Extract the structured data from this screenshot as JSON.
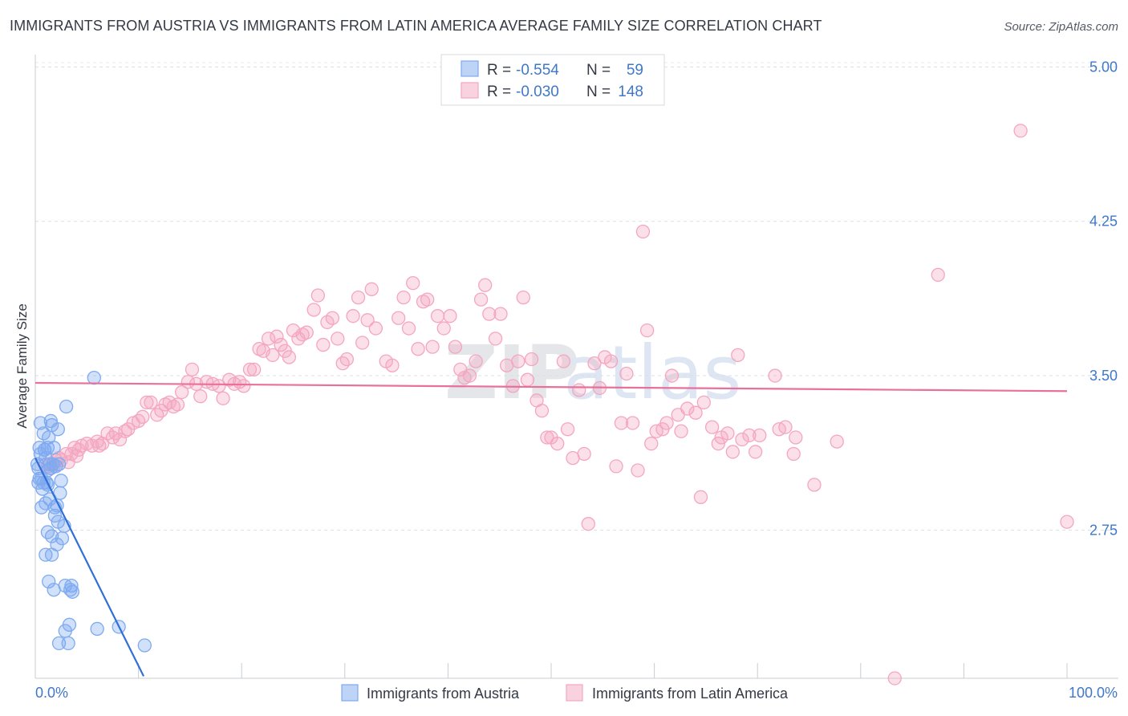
{
  "header": {
    "title": "IMMIGRANTS FROM AUSTRIA VS IMMIGRANTS FROM LATIN AMERICA AVERAGE FAMILY SIZE CORRELATION CHART",
    "source": "Source: ZipAtlas.com"
  },
  "watermark": {
    "part1": "ZIP",
    "part2": "atlas"
  },
  "chart_data": {
    "type": "scatter",
    "title": "IMMIGRANTS FROM AUSTRIA VS IMMIGRANTS FROM LATIN AMERICA AVERAGE FAMILY SIZE CORRELATION CHART",
    "xlabel": "",
    "ylabel": "Average Family Size",
    "xlim": [
      0,
      100
    ],
    "ylim": [
      2.03,
      5.06
    ],
    "y_ticks": [
      2.75,
      3.5,
      4.25,
      5.0
    ],
    "y_tick_labels": [
      "2.75",
      "3.50",
      "4.25",
      "5.00"
    ],
    "x_tick_labels": [
      "0.0%",
      "100.0%"
    ],
    "legend": {
      "placement": "top-center",
      "rows": [
        {
          "r_label": "R =",
          "r_value": "-0.554",
          "n_label": "N =",
          "n_value": "59"
        },
        {
          "r_label": "R =",
          "r_value": "-0.030",
          "n_label": "N =",
          "n_value": "148"
        }
      ]
    },
    "series": [
      {
        "name": "Immigrants from Austria",
        "color": "#7eaaf0",
        "line_color": "#2f6fd6",
        "trend": {
          "x": [
            0,
            10.5
          ],
          "y": [
            3.1,
            2.04
          ]
        },
        "points": [
          [
            0.2,
            3.07
          ],
          [
            0.4,
            3.0
          ],
          [
            0.5,
            3.12
          ],
          [
            0.3,
            3.05
          ],
          [
            0.6,
            3.0
          ],
          [
            0.8,
            2.98
          ],
          [
            0.7,
            2.95
          ],
          [
            1.0,
            3.1
          ],
          [
            0.9,
            3.14
          ],
          [
            1.2,
            3.04
          ],
          [
            1.1,
            2.98
          ],
          [
            1.5,
            3.05
          ],
          [
            1.3,
            3.2
          ],
          [
            1.4,
            2.9
          ],
          [
            1.0,
            2.88
          ],
          [
            0.6,
            2.86
          ],
          [
            1.7,
            3.07
          ],
          [
            2.0,
            3.06
          ],
          [
            1.8,
            3.15
          ],
          [
            2.3,
            3.07
          ],
          [
            2.5,
            2.99
          ],
          [
            2.1,
            2.87
          ],
          [
            2.4,
            2.93
          ],
          [
            1.6,
            3.26
          ],
          [
            2.2,
            3.24
          ],
          [
            1.5,
            3.28
          ],
          [
            3.0,
            3.35
          ],
          [
            0.9,
            3.14
          ],
          [
            1.2,
            3.15
          ],
          [
            1.9,
            2.82
          ],
          [
            2.2,
            2.79
          ],
          [
            1.6,
            2.72
          ],
          [
            2.6,
            2.71
          ],
          [
            1.2,
            2.74
          ],
          [
            2.1,
            2.68
          ],
          [
            2.8,
            2.77
          ],
          [
            1.0,
            2.63
          ],
          [
            1.6,
            2.63
          ],
          [
            1.3,
            2.5
          ],
          [
            1.8,
            2.46
          ],
          [
            2.9,
            2.48
          ],
          [
            3.5,
            2.48
          ],
          [
            3.6,
            2.45
          ],
          [
            3.4,
            2.46
          ],
          [
            3.3,
            2.29
          ],
          [
            2.9,
            2.26
          ],
          [
            3.2,
            2.2
          ],
          [
            2.3,
            2.2
          ],
          [
            6.0,
            2.27
          ],
          [
            8.1,
            2.28
          ],
          [
            10.6,
            2.19
          ],
          [
            5.7,
            3.49
          ],
          [
            0.4,
            3.15
          ],
          [
            0.3,
            2.98
          ],
          [
            0.5,
            3.27
          ],
          [
            1.2,
            2.97
          ],
          [
            1.9,
            2.86
          ],
          [
            0.8,
            3.22
          ],
          [
            1.4,
            3.07
          ]
        ]
      },
      {
        "name": "Immigrants from Latin America",
        "color": "#f4a6c0",
        "line_color": "#e8709a",
        "trend": {
          "x": [
            0,
            100
          ],
          "y": [
            3.465,
            3.425
          ]
        },
        "points": [
          [
            1.0,
            3.07
          ],
          [
            1.2,
            3.06
          ],
          [
            1.5,
            3.05
          ],
          [
            1.8,
            3.06
          ],
          [
            2.0,
            3.09
          ],
          [
            2.3,
            3.1
          ],
          [
            2.5,
            3.09
          ],
          [
            3.0,
            3.12
          ],
          [
            3.2,
            3.08
          ],
          [
            3.5,
            3.12
          ],
          [
            3.8,
            3.15
          ],
          [
            4.0,
            3.11
          ],
          [
            4.2,
            3.14
          ],
          [
            4.5,
            3.16
          ],
          [
            5.0,
            3.17
          ],
          [
            5.5,
            3.16
          ],
          [
            6.0,
            3.18
          ],
          [
            6.2,
            3.16
          ],
          [
            6.5,
            3.17
          ],
          [
            7.0,
            3.22
          ],
          [
            7.5,
            3.2
          ],
          [
            7.8,
            3.22
          ],
          [
            8.2,
            3.19
          ],
          [
            8.7,
            3.23
          ],
          [
            9.0,
            3.24
          ],
          [
            9.5,
            3.27
          ],
          [
            10.0,
            3.28
          ],
          [
            10.4,
            3.3
          ],
          [
            10.8,
            3.37
          ],
          [
            11.2,
            3.37
          ],
          [
            11.8,
            3.31
          ],
          [
            12.2,
            3.33
          ],
          [
            12.6,
            3.36
          ],
          [
            13.0,
            3.37
          ],
          [
            13.4,
            3.35
          ],
          [
            13.8,
            3.36
          ],
          [
            14.2,
            3.42
          ],
          [
            14.8,
            3.47
          ],
          [
            15.2,
            3.53
          ],
          [
            15.6,
            3.46
          ],
          [
            16.0,
            3.4
          ],
          [
            16.6,
            3.47
          ],
          [
            17.2,
            3.46
          ],
          [
            17.8,
            3.45
          ],
          [
            18.2,
            3.39
          ],
          [
            18.8,
            3.48
          ],
          [
            19.3,
            3.46
          ],
          [
            19.8,
            3.47
          ],
          [
            20.2,
            3.45
          ],
          [
            20.8,
            3.53
          ],
          [
            21.2,
            3.53
          ],
          [
            21.7,
            3.63
          ],
          [
            22.1,
            3.62
          ],
          [
            22.6,
            3.68
          ],
          [
            23.0,
            3.6
          ],
          [
            23.4,
            3.69
          ],
          [
            23.8,
            3.65
          ],
          [
            24.2,
            3.62
          ],
          [
            24.6,
            3.59
          ],
          [
            25.0,
            3.72
          ],
          [
            25.5,
            3.68
          ],
          [
            25.9,
            3.7
          ],
          [
            26.3,
            3.71
          ],
          [
            27.0,
            3.82
          ],
          [
            27.4,
            3.89
          ],
          [
            27.9,
            3.65
          ],
          [
            28.3,
            3.76
          ],
          [
            28.8,
            3.78
          ],
          [
            29.3,
            3.68
          ],
          [
            29.8,
            3.56
          ],
          [
            30.2,
            3.58
          ],
          [
            30.8,
            3.79
          ],
          [
            31.3,
            3.88
          ],
          [
            31.7,
            3.66
          ],
          [
            32.2,
            3.77
          ],
          [
            32.6,
            3.92
          ],
          [
            33.0,
            3.73
          ],
          [
            34.0,
            3.57
          ],
          [
            34.6,
            3.55
          ],
          [
            35.2,
            3.78
          ],
          [
            35.7,
            3.88
          ],
          [
            36.2,
            3.73
          ],
          [
            36.6,
            3.95
          ],
          [
            37.1,
            3.63
          ],
          [
            37.6,
            3.86
          ],
          [
            38.0,
            3.87
          ],
          [
            38.5,
            3.64
          ],
          [
            39.0,
            3.79
          ],
          [
            39.6,
            3.73
          ],
          [
            40.2,
            3.79
          ],
          [
            40.7,
            3.64
          ],
          [
            41.2,
            3.53
          ],
          [
            41.6,
            3.49
          ],
          [
            42.1,
            3.5
          ],
          [
            42.7,
            3.57
          ],
          [
            43.2,
            3.87
          ],
          [
            43.6,
            3.94
          ],
          [
            44.0,
            3.8
          ],
          [
            44.6,
            3.68
          ],
          [
            45.1,
            3.8
          ],
          [
            45.7,
            3.55
          ],
          [
            46.3,
            3.45
          ],
          [
            46.8,
            3.57
          ],
          [
            47.3,
            3.88
          ],
          [
            47.7,
            3.48
          ],
          [
            48.1,
            3.58
          ],
          [
            48.6,
            3.38
          ],
          [
            49.1,
            3.33
          ],
          [
            49.6,
            3.2
          ],
          [
            50.0,
            3.2
          ],
          [
            50.6,
            3.17
          ],
          [
            51.2,
            3.57
          ],
          [
            51.6,
            3.24
          ],
          [
            52.1,
            3.1
          ],
          [
            52.7,
            3.43
          ],
          [
            53.2,
            3.12
          ],
          [
            53.6,
            2.78
          ],
          [
            54.2,
            3.56
          ],
          [
            54.7,
            3.44
          ],
          [
            55.2,
            3.59
          ],
          [
            55.8,
            3.57
          ],
          [
            56.3,
            3.06
          ],
          [
            56.8,
            3.27
          ],
          [
            57.3,
            3.51
          ],
          [
            57.9,
            3.27
          ],
          [
            58.4,
            3.04
          ],
          [
            58.9,
            4.2
          ],
          [
            59.3,
            3.72
          ],
          [
            59.7,
            3.17
          ],
          [
            60.2,
            3.23
          ],
          [
            60.8,
            3.24
          ],
          [
            61.2,
            3.27
          ],
          [
            61.7,
            3.5
          ],
          [
            62.3,
            3.31
          ],
          [
            62.6,
            3.23
          ],
          [
            63.2,
            3.34
          ],
          [
            64.0,
            3.32
          ],
          [
            64.5,
            2.91
          ],
          [
            64.8,
            3.37
          ],
          [
            65.6,
            3.25
          ],
          [
            66.2,
            3.17
          ],
          [
            66.5,
            3.2
          ],
          [
            67.1,
            3.22
          ],
          [
            67.6,
            3.13
          ],
          [
            68.1,
            3.6
          ],
          [
            68.5,
            3.19
          ],
          [
            69.2,
            3.21
          ],
          [
            69.8,
            3.13
          ],
          [
            70.2,
            3.21
          ],
          [
            71.7,
            3.5
          ],
          [
            72.1,
            3.24
          ],
          [
            72.7,
            3.25
          ],
          [
            73.5,
            3.12
          ],
          [
            73.7,
            3.2
          ],
          [
            75.5,
            2.97
          ],
          [
            77.7,
            3.18
          ],
          [
            83.3,
            2.03
          ],
          [
            87.5,
            3.99
          ],
          [
            95.5,
            4.69
          ],
          [
            100,
            2.79
          ]
        ]
      }
    ]
  }
}
